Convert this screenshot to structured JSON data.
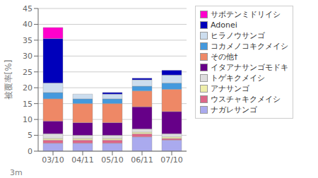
{
  "chart_data": {
    "type": "bar",
    "stacked": true,
    "categories": [
      "03/10",
      "04/11",
      "05/10",
      "06/11",
      "07/10"
    ],
    "series": [
      {
        "name": "ナガレサンゴ",
        "color": "#aaaaee",
        "values": [
          2.5,
          2.5,
          2.5,
          4.5,
          3.5
        ]
      },
      {
        "name": "ウスチャキクメイシ",
        "color": "#dd6688",
        "values": [
          1.0,
          1.0,
          1.0,
          1.0,
          0.5
        ]
      },
      {
        "name": "アナサンゴ",
        "color": "#eeeeaa",
        "values": [
          0.5,
          0.5,
          0.5,
          0.5,
          0.5
        ]
      },
      {
        "name": "トゲキクメイシ",
        "color": "#dddddd",
        "values": [
          1.5,
          1.0,
          1.0,
          1.0,
          1.0
        ]
      },
      {
        "name": "イタアナサンゴモドキ",
        "color": "#660088",
        "values": [
          4.0,
          4.0,
          4.0,
          7.0,
          7.0
        ]
      },
      {
        "name": "その他†",
        "color": "#ee8866",
        "values": [
          7.0,
          6.0,
          6.0,
          5.0,
          7.0
        ]
      },
      {
        "name": "コカメノコキクメイシ",
        "color": "#4499dd",
        "values": [
          2.0,
          1.5,
          1.5,
          1.5,
          2.0
        ]
      },
      {
        "name": "ヒラノウサンゴ",
        "color": "#ccddee",
        "values": [
          3.0,
          1.5,
          1.5,
          2.0,
          2.5
        ]
      },
      {
        "name": "Adonei",
        "color": "#0000bb",
        "values": [
          14.0,
          0.0,
          0.5,
          0.5,
          1.5
        ]
      },
      {
        "name": "サボテンミドリイシ",
        "color": "#ff00cc",
        "values": [
          3.5,
          0.0,
          0.0,
          0.0,
          0.0
        ]
      }
    ],
    "ylabel": "被覆率[%]",
    "xlabel": "3m",
    "ylim": [
      0,
      45
    ],
    "yticks": [
      0,
      5,
      10,
      15,
      20,
      25,
      30,
      35,
      40,
      45
    ],
    "grid": true,
    "legend": "right"
  }
}
